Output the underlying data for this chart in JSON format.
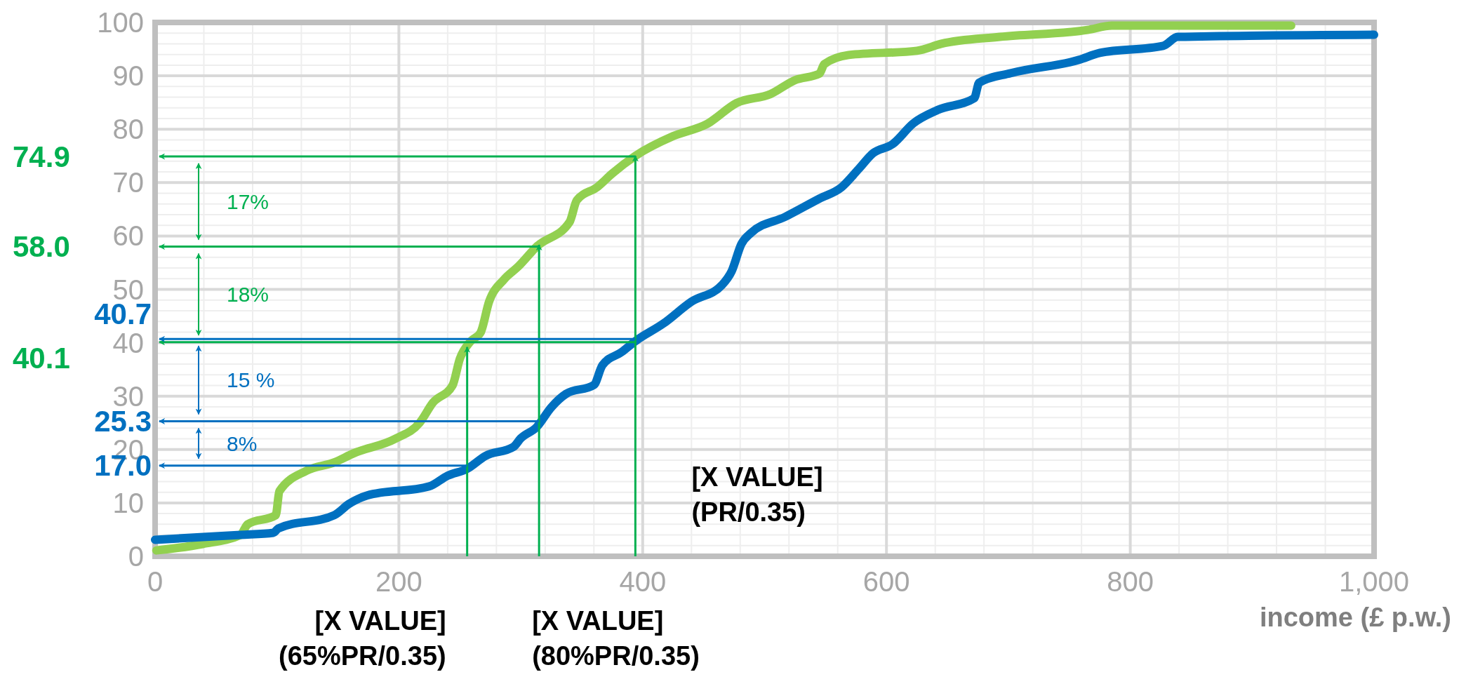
{
  "chart_data": {
    "type": "line",
    "xlabel": "income (£ p.w.)",
    "xlim": [
      0,
      1000
    ],
    "xticks": [
      0,
      200,
      400,
      600,
      800,
      {
        "value": 1000,
        "label": "1,000"
      }
    ],
    "ylim": [
      0,
      100
    ],
    "yticks": [
      0,
      10,
      20,
      30,
      40,
      50,
      60,
      70,
      80,
      90,
      100
    ],
    "grid": true,
    "marker": "none",
    "line_style": "solid",
    "series": [
      {
        "color": "#92d050",
        "x": [
          1,
          39,
          70,
          76,
          99,
          102,
          124,
          147,
          163,
          197,
          217,
          228,
          244,
          250,
          259,
          267,
          274,
          286,
          298,
          313,
          340,
          346,
          363,
          375,
          394,
          425,
          453,
          477,
          505,
          525,
          545,
          549,
          569,
          625,
          645,
          693,
          765,
          785,
          932
        ],
        "values": [
          1.1,
          2.3,
          4,
          6,
          7.7,
          12.2,
          16,
          17.6,
          19.3,
          22,
          25,
          28.8,
          32,
          37,
          40.3,
          41.9,
          47.7,
          51.8,
          54.3,
          58,
          62.6,
          66.7,
          69.2,
          71.7,
          75,
          78.7,
          81,
          84.9,
          86.6,
          89.2,
          90.4,
          92.2,
          93.9,
          94.7,
          96,
          97.3,
          98.6,
          99.4,
          99.4
        ]
      },
      {
        "color": "#0070c0",
        "x": [
          0,
          70,
          97,
          101,
          147,
          159,
          174,
          225,
          240,
          256,
          271,
          294,
          300,
          313,
          325,
          337,
          360,
          367,
          383,
          394,
          417,
          440,
          465,
          473,
          481,
          489,
          517,
          545,
          563,
          577,
          589,
          605,
          622,
          642,
          672,
          676,
          702,
          758,
          775,
          827,
          839,
          1000
        ],
        "values": [
          3.1,
          4,
          4.4,
          5.2,
          7.7,
          9.8,
          11.4,
          13.1,
          15.1,
          16.4,
          18.8,
          20.5,
          22.1,
          24.2,
          27.9,
          30.4,
          32.1,
          35.8,
          38.3,
          40.3,
          43.6,
          47.7,
          50.8,
          53.4,
          58.5,
          60.6,
          63.6,
          67,
          69.1,
          72.5,
          75.5,
          77.2,
          81.1,
          83.6,
          85.8,
          88.7,
          90.5,
          93,
          94.3,
          95.6,
          97.3,
          97.7
        ]
      }
    ],
    "ref_lines": [
      {
        "axis": "y",
        "value": 74.9,
        "label": "74.9",
        "color": "#00b050"
      },
      {
        "axis": "y",
        "value": 58.0,
        "label": "58.0",
        "color": "#00b050"
      },
      {
        "axis": "y",
        "value": 40.1,
        "label": "40.1",
        "color": "#00b050"
      },
      {
        "axis": "y",
        "value": 40.7,
        "label": "40.7",
        "color": "#0070c0"
      },
      {
        "axis": "y",
        "value": 25.3,
        "label": "25.3",
        "color": "#0070c0"
      },
      {
        "axis": "y",
        "value": 17.0,
        "label": "17.0",
        "color": "#0070c0"
      },
      {
        "axis": "x",
        "value": 256,
        "label": "[X VALUE]\n(65%PR/0.35)",
        "color": "#00b050"
      },
      {
        "axis": "x",
        "value": 315,
        "label": "[X VALUE]\n(80%PR/0.35)",
        "color": "#00b050"
      },
      {
        "axis": "x",
        "value": 394,
        "label": "[X VALUE]\n(PR/0.35)",
        "color": "#00b050"
      }
    ],
    "annotations": [
      "17%",
      "18%",
      "15 %",
      "8%"
    ]
  }
}
